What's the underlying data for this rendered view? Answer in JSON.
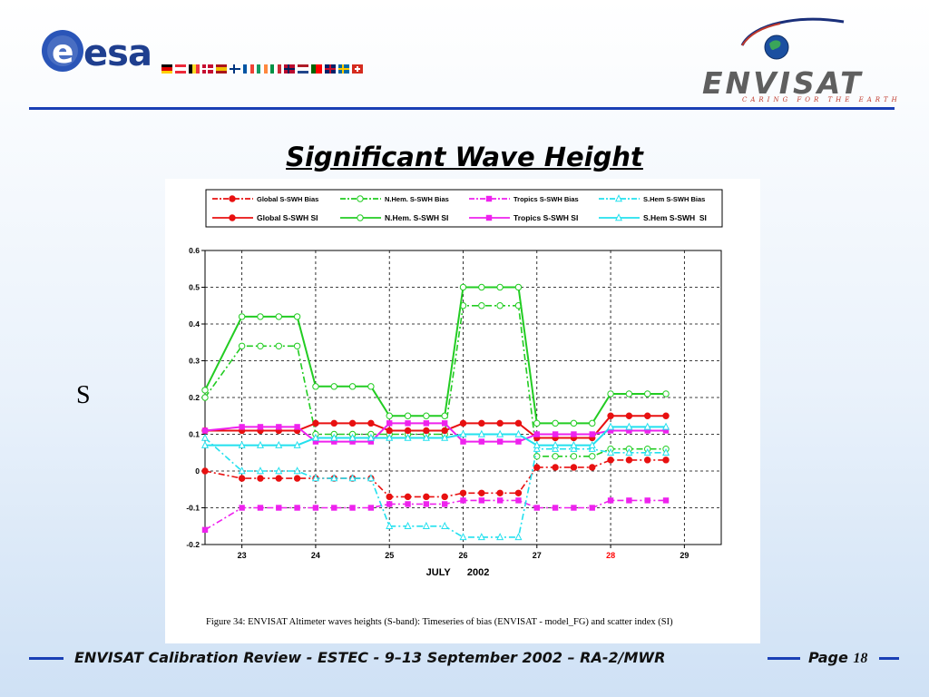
{
  "header": {
    "esa_logo_text": "esa",
    "envisat_logo_text": "ENVISAT",
    "envisat_tagline": "CARING FOR THE EARTH"
  },
  "slide_title": "Significant Wave Height",
  "side_text": "S",
  "figure_caption": "Figure 34:    ENVISAT Altimeter waves heights (S-band): Timeseries of bias (ENVISAT - model_FG) and scatter index (SI)",
  "footer": {
    "text": "ENVISAT Calibration Review - ESTEC - 9–13 September 2002 – RA-2/MWR",
    "page_label": "Page",
    "page_number": "18"
  },
  "chart_data": {
    "type": "line",
    "x": [
      22.5,
      23.0,
      23.25,
      23.5,
      23.75,
      24.0,
      24.25,
      24.5,
      24.75,
      25.0,
      25.25,
      25.5,
      25.75,
      26.0,
      26.25,
      26.5,
      26.75,
      27.0,
      27.25,
      27.5,
      27.75,
      28.0,
      28.25,
      28.5,
      28.75
    ],
    "x_tick_values": [
      23,
      24,
      25,
      26,
      27,
      28,
      29
    ],
    "x_tick_labels": [
      "23",
      "24",
      "25",
      "26",
      "27",
      "28",
      "29"
    ],
    "x_tick_highlight": "28",
    "x_tick_highlight_color": "#ff0000",
    "xlabel": "JULY      2002",
    "xlim": [
      22.5,
      29.5
    ],
    "ylim": [
      -0.2,
      0.6
    ],
    "y_ticks": [
      -0.2,
      -0.1,
      0,
      0.1,
      0.2,
      0.3,
      0.4,
      0.5,
      0.6
    ],
    "y_tick_labels": [
      "-0.2",
      "-0.1",
      "0",
      "0.1",
      "0.2",
      "0.3",
      "0.4",
      "0.5",
      "0.6"
    ],
    "grid": true,
    "legend_position": "top",
    "series": [
      {
        "name": "Global S-SWH Bias",
        "color": "#e81010",
        "marker": "filled-circle",
        "style": "dashdot",
        "values": [
          0.0,
          -0.02,
          -0.02,
          -0.02,
          -0.02,
          -0.02,
          -0.02,
          -0.02,
          -0.02,
          -0.07,
          -0.07,
          -0.07,
          -0.07,
          -0.06,
          -0.06,
          -0.06,
          -0.06,
          0.01,
          0.01,
          0.01,
          0.01,
          0.03,
          0.03,
          0.03,
          0.03
        ]
      },
      {
        "name": "N.Hem. S-SWH Bias",
        "color": "#22cc22",
        "marker": "open-circle",
        "style": "dashdot",
        "values": [
          0.2,
          0.34,
          0.34,
          0.34,
          0.34,
          0.1,
          0.1,
          0.1,
          0.1,
          0.1,
          0.1,
          0.1,
          0.1,
          0.45,
          0.45,
          0.45,
          0.45,
          0.04,
          0.04,
          0.04,
          0.04,
          0.06,
          0.06,
          0.06,
          0.06
        ]
      },
      {
        "name": "Tropics S-SWH Bias",
        "color": "#ee22ee",
        "marker": "filled-square",
        "style": "dashdot",
        "values": [
          -0.16,
          -0.1,
          -0.1,
          -0.1,
          -0.1,
          -0.1,
          -0.1,
          -0.1,
          -0.1,
          -0.09,
          -0.09,
          -0.09,
          -0.09,
          -0.08,
          -0.08,
          -0.08,
          -0.08,
          -0.1,
          -0.1,
          -0.1,
          -0.1,
          -0.08,
          -0.08,
          -0.08,
          -0.08
        ]
      },
      {
        "name": "S.Hem S-SWH Bias",
        "color": "#22e0ee",
        "marker": "open-triangle",
        "style": "dashdot",
        "values": [
          0.09,
          0.0,
          0.0,
          0.0,
          0.0,
          -0.02,
          -0.02,
          -0.02,
          -0.02,
          -0.15,
          -0.15,
          -0.15,
          -0.15,
          -0.18,
          -0.18,
          -0.18,
          -0.18,
          0.06,
          0.06,
          0.06,
          0.06,
          0.05,
          0.05,
          0.05,
          0.05
        ]
      },
      {
        "name": "Global S-SWH SI",
        "color": "#e81010",
        "marker": "filled-circle",
        "style": "solid",
        "values": [
          0.11,
          0.11,
          0.11,
          0.11,
          0.11,
          0.13,
          0.13,
          0.13,
          0.13,
          0.11,
          0.11,
          0.11,
          0.11,
          0.13,
          0.13,
          0.13,
          0.13,
          0.09,
          0.09,
          0.09,
          0.09,
          0.15,
          0.15,
          0.15,
          0.15
        ]
      },
      {
        "name": "N.Hem. S-SWH SI",
        "color": "#22cc22",
        "marker": "open-circle",
        "style": "solid",
        "values": [
          0.22,
          0.42,
          0.42,
          0.42,
          0.42,
          0.23,
          0.23,
          0.23,
          0.23,
          0.15,
          0.15,
          0.15,
          0.15,
          0.5,
          0.5,
          0.5,
          0.5,
          0.13,
          0.13,
          0.13,
          0.13,
          0.21,
          0.21,
          0.21,
          0.21
        ]
      },
      {
        "name": "Tropics S-SWH SI",
        "color": "#ee22ee",
        "marker": "filled-square",
        "style": "solid",
        "values": [
          0.11,
          0.12,
          0.12,
          0.12,
          0.12,
          0.08,
          0.08,
          0.08,
          0.08,
          0.13,
          0.13,
          0.13,
          0.13,
          0.08,
          0.08,
          0.08,
          0.08,
          0.1,
          0.1,
          0.1,
          0.1,
          0.11,
          0.11,
          0.11,
          0.11
        ]
      },
      {
        "name": "S.Hem S-SWH  SI",
        "color": "#22e0ee",
        "marker": "open-triangle",
        "style": "solid",
        "values": [
          0.07,
          0.07,
          0.07,
          0.07,
          0.07,
          0.09,
          0.09,
          0.09,
          0.09,
          0.09,
          0.09,
          0.09,
          0.09,
          0.1,
          0.1,
          0.1,
          0.1,
          0.07,
          0.07,
          0.07,
          0.07,
          0.12,
          0.12,
          0.12,
          0.12
        ]
      }
    ]
  },
  "colors": {
    "rule_blue": "#1a3fb5",
    "esa_blue": "#1f3f8f",
    "envisat_gray": "#5f5f5f",
    "tagline_red": "#c0392b"
  }
}
